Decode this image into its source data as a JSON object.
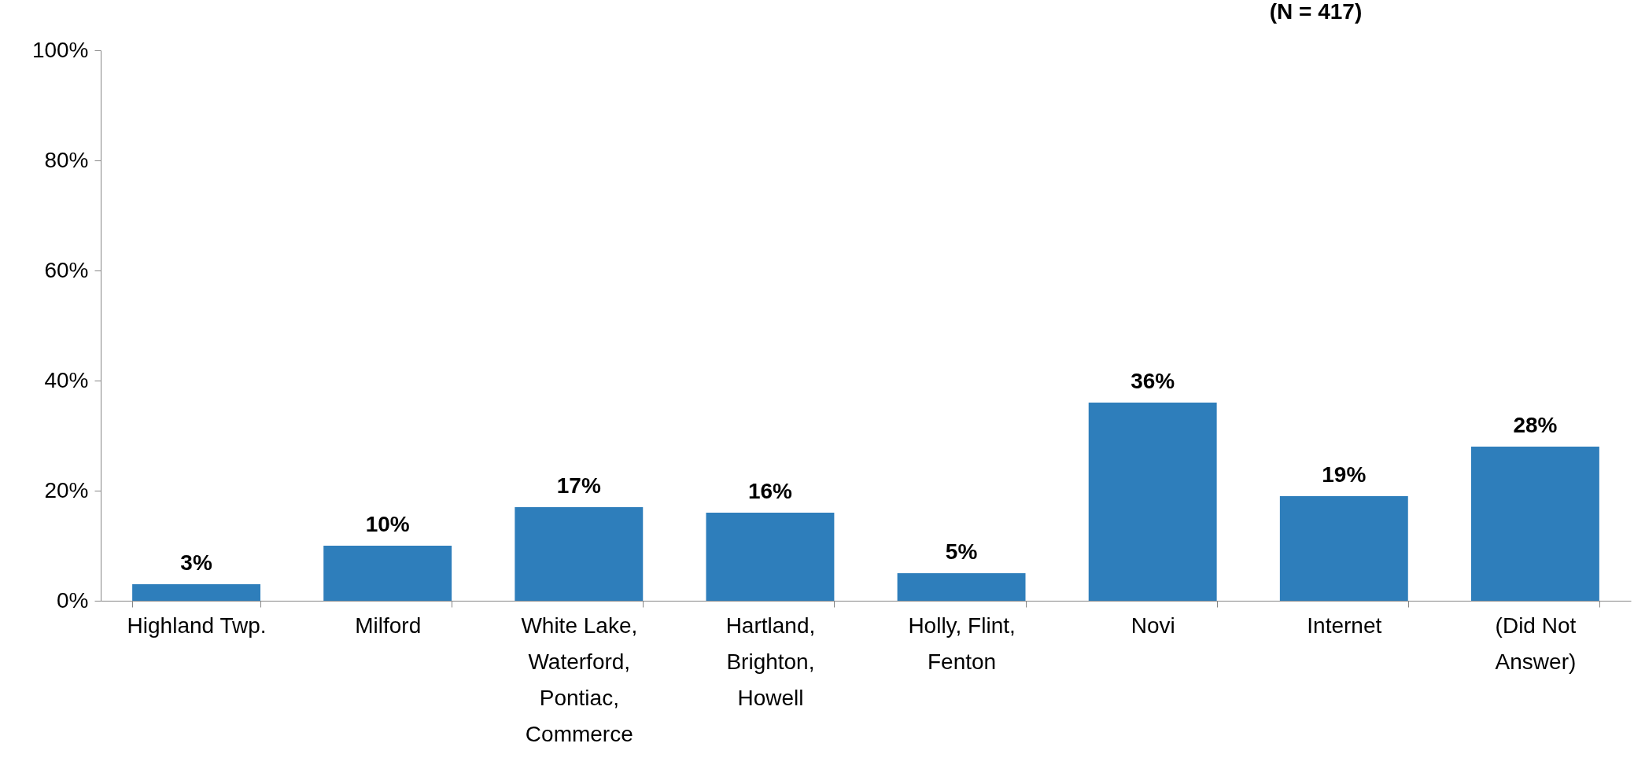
{
  "chart_data": {
    "type": "bar",
    "title": "(N = 417)",
    "categories": [
      "Highland Twp.",
      "Milford",
      "White Lake, Waterford, Pontiac, Commerce",
      "Hartland, Brighton, Howell",
      "Holly, Flint, Fenton",
      "Novi",
      "Internet",
      "(Did Not Answer)"
    ],
    "values": [
      3,
      10,
      17,
      16,
      5,
      36,
      19,
      28
    ],
    "value_labels": [
      "3%",
      "10%",
      "17%",
      "16%",
      "5%",
      "36%",
      "19%",
      "28%"
    ],
    "color": "#2e7ebb",
    "ylim": [
      0,
      100
    ],
    "yticks": [
      {
        "value": 0,
        "label": "0%"
      },
      {
        "value": 20,
        "label": "20%"
      },
      {
        "value": 40,
        "label": "40%"
      },
      {
        "value": 60,
        "label": "60%"
      },
      {
        "value": 80,
        "label": "80%"
      },
      {
        "value": 100,
        "label": "100%"
      }
    ],
    "grid": false
  }
}
